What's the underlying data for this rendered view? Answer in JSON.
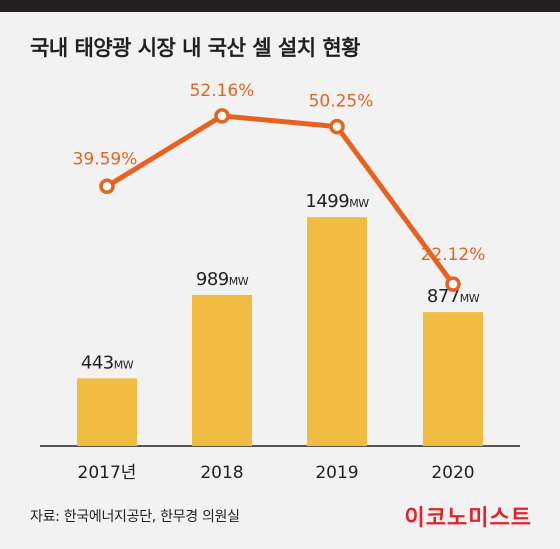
{
  "title": "국내 태양광 시장 내 국산 셀 설치 현황",
  "source": "자료: 한국에너지공단, 한무경 의원실",
  "brand": "이코노미스트",
  "colors": {
    "bar": "#f0bc42",
    "line": "#e8621f",
    "text": "#231f20",
    "background": "#f2f2f2"
  },
  "chart_data": {
    "type": "bar",
    "categories": [
      "2017년",
      "2018",
      "2019",
      "2020"
    ],
    "series": [
      {
        "values": [
          443,
          989,
          1499,
          877
        ],
        "value_labels": [
          "443",
          "989",
          "1499",
          "877"
        ],
        "unit": "MW",
        "type": "bar"
      },
      {
        "values": [
          39.59,
          52.16,
          50.25,
          22.12
        ],
        "value_labels": [
          "39.59%",
          "52.16%",
          "50.25%",
          "22.12%"
        ],
        "type": "line"
      }
    ]
  }
}
